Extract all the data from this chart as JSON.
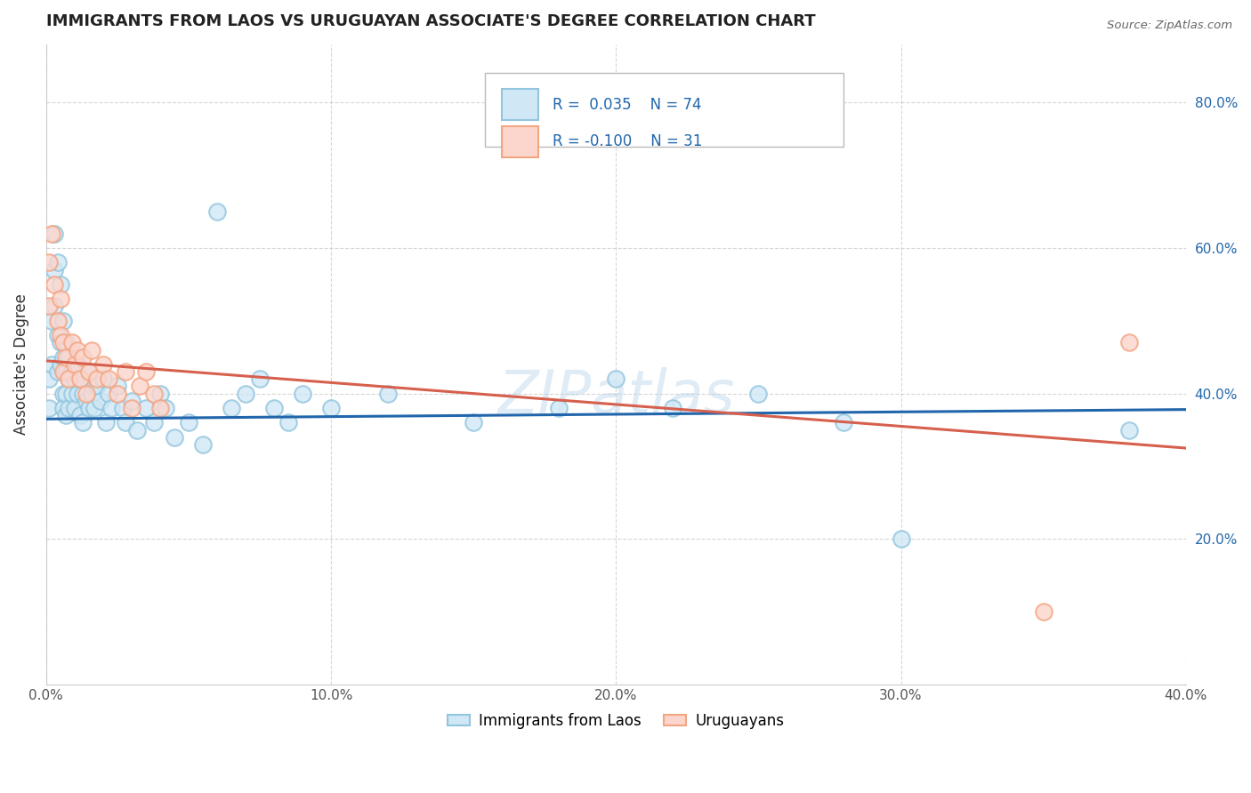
{
  "title": "IMMIGRANTS FROM LAOS VS URUGUAYAN ASSOCIATE'S DEGREE CORRELATION CHART",
  "source": "Source: ZipAtlas.com",
  "ylabel": "Associate's Degree",
  "legend_labels": [
    "Immigrants from Laos",
    "Uruguayans"
  ],
  "blue_color": "#92c5de",
  "pink_color": "#f4a582",
  "blue_fill": "#d0e8f5",
  "pink_fill": "#fcd5cc",
  "blue_line_color": "#2166ac",
  "pink_line_color": "#d6604d",
  "grid_color": "#cccccc",
  "background_color": "#ffffff",
  "watermark": "ZIPatlas",
  "blue_scatter_x": [
    0.001,
    0.001,
    0.002,
    0.002,
    0.003,
    0.003,
    0.003,
    0.004,
    0.004,
    0.004,
    0.005,
    0.005,
    0.005,
    0.006,
    0.006,
    0.006,
    0.006,
    0.007,
    0.007,
    0.007,
    0.007,
    0.008,
    0.008,
    0.008,
    0.009,
    0.009,
    0.01,
    0.01,
    0.011,
    0.011,
    0.012,
    0.012,
    0.013,
    0.013,
    0.014,
    0.015,
    0.015,
    0.016,
    0.017,
    0.018,
    0.019,
    0.02,
    0.021,
    0.022,
    0.023,
    0.025,
    0.027,
    0.028,
    0.03,
    0.032,
    0.035,
    0.038,
    0.04,
    0.042,
    0.045,
    0.05,
    0.055,
    0.06,
    0.065,
    0.07,
    0.075,
    0.08,
    0.085,
    0.09,
    0.1,
    0.12,
    0.15,
    0.18,
    0.2,
    0.22,
    0.25,
    0.28,
    0.3,
    0.38
  ],
  "blue_scatter_y": [
    0.42,
    0.38,
    0.5,
    0.44,
    0.57,
    0.62,
    0.52,
    0.48,
    0.43,
    0.58,
    0.55,
    0.47,
    0.44,
    0.5,
    0.45,
    0.4,
    0.38,
    0.47,
    0.43,
    0.4,
    0.37,
    0.45,
    0.42,
    0.38,
    0.43,
    0.4,
    0.42,
    0.38,
    0.44,
    0.4,
    0.37,
    0.42,
    0.4,
    0.36,
    0.39,
    0.43,
    0.38,
    0.4,
    0.38,
    0.41,
    0.39,
    0.42,
    0.36,
    0.4,
    0.38,
    0.41,
    0.38,
    0.36,
    0.39,
    0.35,
    0.38,
    0.36,
    0.4,
    0.38,
    0.34,
    0.36,
    0.33,
    0.65,
    0.38,
    0.4,
    0.42,
    0.38,
    0.36,
    0.4,
    0.38,
    0.4,
    0.36,
    0.38,
    0.42,
    0.38,
    0.4,
    0.36,
    0.2,
    0.35
  ],
  "pink_scatter_x": [
    0.001,
    0.001,
    0.002,
    0.003,
    0.004,
    0.005,
    0.005,
    0.006,
    0.006,
    0.007,
    0.008,
    0.009,
    0.01,
    0.011,
    0.012,
    0.013,
    0.014,
    0.015,
    0.016,
    0.018,
    0.02,
    0.022,
    0.025,
    0.028,
    0.03,
    0.033,
    0.035,
    0.038,
    0.04,
    0.35,
    0.38
  ],
  "pink_scatter_y": [
    0.52,
    0.58,
    0.62,
    0.55,
    0.5,
    0.53,
    0.48,
    0.47,
    0.43,
    0.45,
    0.42,
    0.47,
    0.44,
    0.46,
    0.42,
    0.45,
    0.4,
    0.43,
    0.46,
    0.42,
    0.44,
    0.42,
    0.4,
    0.43,
    0.38,
    0.41,
    0.43,
    0.4,
    0.38,
    0.1,
    0.47
  ],
  "xlim": [
    0.0,
    0.4
  ],
  "ylim": [
    0.0,
    0.88
  ],
  "y_tick_vals": [
    0.2,
    0.4,
    0.6,
    0.8
  ],
  "y_tick_labels": [
    "20.0%",
    "40.0%",
    "60.0%",
    "80.0%"
  ],
  "x_tick_vals": [
    0.0,
    0.1,
    0.2,
    0.3,
    0.4
  ],
  "x_tick_labels": [
    "0.0%",
    "10.0%",
    "20.0%",
    "30.0%",
    "40.0%"
  ],
  "blue_trend_x": [
    0.0,
    0.4
  ],
  "blue_trend_y": [
    0.365,
    0.378
  ],
  "pink_trend_x": [
    0.0,
    0.4
  ],
  "pink_trend_y": [
    0.445,
    0.325
  ],
  "dashed_line_y": 0.4
}
